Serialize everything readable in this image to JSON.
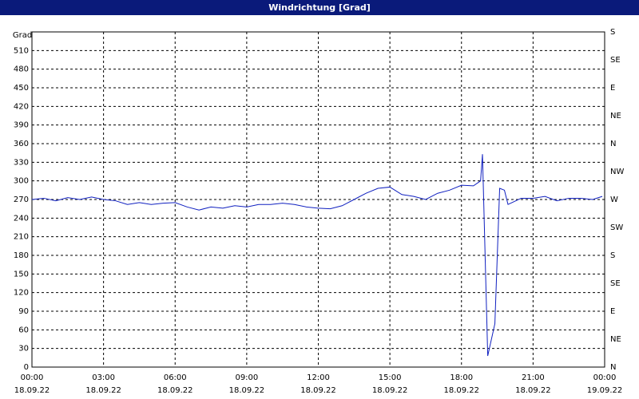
{
  "chart_data": {
    "type": "line",
    "title": "Windrichtung [Grad]",
    "y_label": "Grad",
    "xlim": [
      0,
      24
    ],
    "ylim": [
      0,
      540
    ],
    "xticks": [
      {
        "value": 0,
        "label": "00:00"
      },
      {
        "value": 3,
        "label": "03:00"
      },
      {
        "value": 6,
        "label": "06:00"
      },
      {
        "value": 9,
        "label": "09:00"
      },
      {
        "value": 12,
        "label": "12:00"
      },
      {
        "value": 15,
        "label": "15:00"
      },
      {
        "value": 18,
        "label": "18:00"
      },
      {
        "value": 21,
        "label": "21:00"
      },
      {
        "value": 24,
        "label": "00:00"
      }
    ],
    "xtick_dates": [
      "18.09.22",
      "18.09.22",
      "18.09.22",
      "18.09.22",
      "18.09.22",
      "18.09.22",
      "18.09.22",
      "18.09.22",
      "19.09.22"
    ],
    "yticks": [
      0,
      30,
      60,
      90,
      120,
      150,
      180,
      210,
      240,
      270,
      300,
      330,
      360,
      390,
      420,
      450,
      480,
      510
    ],
    "y2ticks": [
      {
        "value": 540,
        "label": "S"
      },
      {
        "value": 495,
        "label": "SE"
      },
      {
        "value": 450,
        "label": "E"
      },
      {
        "value": 405,
        "label": "NE"
      },
      {
        "value": 360,
        "label": "N"
      },
      {
        "value": 315,
        "label": "NW"
      },
      {
        "value": 270,
        "label": "W"
      },
      {
        "value": 225,
        "label": "SW"
      },
      {
        "value": 180,
        "label": "S"
      },
      {
        "value": 135,
        "label": "SE"
      },
      {
        "value": 90,
        "label": "E"
      },
      {
        "value": 45,
        "label": "NE"
      },
      {
        "value": 0,
        "label": "N"
      }
    ],
    "grid": true,
    "series": [
      {
        "name": "Windrichtung",
        "color": "#1020c0",
        "x": [
          0,
          0.5,
          1,
          1.5,
          2,
          2.5,
          3,
          3.5,
          4,
          4.5,
          5,
          5.5,
          6,
          6.5,
          7,
          7.5,
          8,
          8.5,
          9,
          9.5,
          10,
          10.5,
          11,
          11.5,
          12,
          12.5,
          13,
          13.5,
          14,
          14.5,
          15,
          15.5,
          16,
          16.5,
          17,
          17.5,
          18,
          18.5,
          18.8,
          18.88,
          19.1,
          19.4,
          19.6,
          19.8,
          19.95,
          20.5,
          21,
          21.5,
          22,
          22.5,
          23,
          23.5,
          23.9
        ],
        "values": [
          270,
          272,
          268,
          273,
          270,
          274,
          270,
          268,
          262,
          265,
          262,
          264,
          265,
          258,
          253,
          258,
          256,
          260,
          258,
          262,
          262,
          264,
          262,
          258,
          256,
          255,
          260,
          270,
          280,
          288,
          290,
          278,
          275,
          270,
          280,
          285,
          293,
          292,
          300,
          343,
          18,
          70,
          288,
          285,
          262,
          272,
          272,
          275,
          268,
          272,
          272,
          270,
          275
        ]
      }
    ]
  }
}
